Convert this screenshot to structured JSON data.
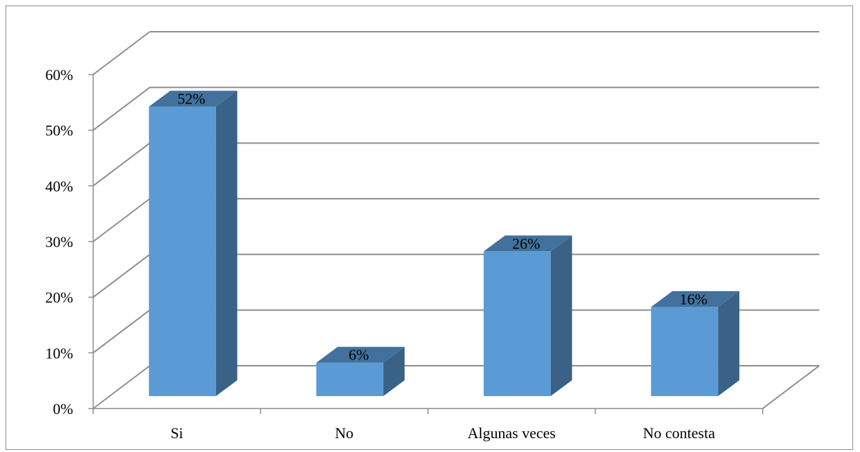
{
  "chart_data": {
    "type": "bar",
    "title": "",
    "xlabel": "",
    "ylabel": "",
    "categories": [
      "Si",
      "No",
      "Algunas veces",
      "No contesta"
    ],
    "values": [
      52,
      6,
      26,
      16
    ],
    "data_labels": [
      "52%",
      "6%",
      "26%",
      "16%"
    ],
    "ylim": [
      0,
      60
    ],
    "yticks": [
      0,
      10,
      20,
      30,
      40,
      50,
      60
    ],
    "ytick_labels": [
      "0%",
      "10%",
      "20%",
      "30%",
      "40%",
      "50%",
      "60%"
    ],
    "grid": true,
    "legend": "none",
    "style": "3d-column",
    "colors": {
      "bar_front": "#5b9bd5",
      "bar_side": "#3a6287",
      "bar_top": "#41719c",
      "grid": "#8c8c8c",
      "text": "#000000"
    }
  }
}
